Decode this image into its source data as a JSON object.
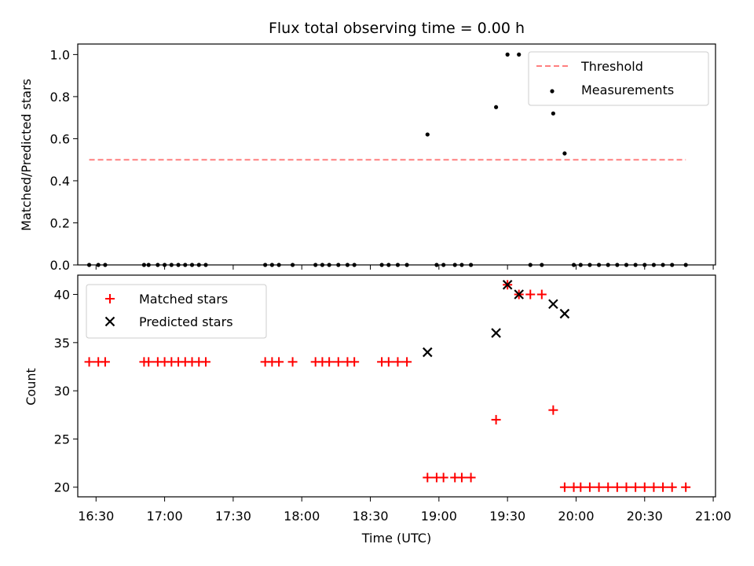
{
  "chart_data": {
    "title": "Flux total observing time = 0.00 h",
    "colors": {
      "threshold": "#ff7f7f",
      "measurements": "#000000",
      "matched": "#ff0000",
      "predicted": "#000000"
    },
    "x_axis": {
      "label": "Time (UTC)",
      "range": [
        "16:22",
        "21:01"
      ],
      "ticks": [
        "16:30",
        "17:00",
        "17:30",
        "18:00",
        "18:30",
        "19:00",
        "19:30",
        "20:00",
        "20:30",
        "21:00"
      ]
    },
    "panels": [
      {
        "type": "scatter",
        "ylabel": "Matched/Predicted stars",
        "ylim": [
          0,
          1.05
        ],
        "yticks": [
          "0.0",
          "0.2",
          "0.4",
          "0.6",
          "0.8",
          "1.0"
        ],
        "legend_position": "top-right",
        "threshold": {
          "name": "Threshold",
          "value": 0.5,
          "x_start": "16:27",
          "x_end": "20:48"
        },
        "series": [
          {
            "name": "Measurements",
            "points": [
              [
                "16:27",
                0
              ],
              [
                "16:31",
                0
              ],
              [
                "16:34",
                0
              ],
              [
                "16:51",
                0
              ],
              [
                "16:53",
                0
              ],
              [
                "16:57",
                0
              ],
              [
                "17:00",
                0
              ],
              [
                "17:03",
                0
              ],
              [
                "17:06",
                0
              ],
              [
                "17:09",
                0
              ],
              [
                "17:12",
                0
              ],
              [
                "17:15",
                0
              ],
              [
                "17:18",
                0
              ],
              [
                "17:44",
                0
              ],
              [
                "17:47",
                0
              ],
              [
                "17:50",
                0
              ],
              [
                "17:56",
                0
              ],
              [
                "18:06",
                0
              ],
              [
                "18:09",
                0
              ],
              [
                "18:12",
                0
              ],
              [
                "18:16",
                0
              ],
              [
                "18:20",
                0
              ],
              [
                "18:23",
                0
              ],
              [
                "18:35",
                0
              ],
              [
                "18:38",
                0
              ],
              [
                "18:42",
                0
              ],
              [
                "18:46",
                0
              ],
              [
                "18:55",
                0.62
              ],
              [
                "18:59",
                0
              ],
              [
                "19:02",
                0
              ],
              [
                "19:07",
                0
              ],
              [
                "19:10",
                0
              ],
              [
                "19:14",
                0
              ],
              [
                "19:25",
                0.75
              ],
              [
                "19:30",
                1.0
              ],
              [
                "19:35",
                1.0
              ],
              [
                "19:40",
                0
              ],
              [
                "19:45",
                0
              ],
              [
                "19:50",
                0.72
              ],
              [
                "19:55",
                0.53
              ],
              [
                "19:59",
                0
              ],
              [
                "20:02",
                0
              ],
              [
                "20:06",
                0
              ],
              [
                "20:10",
                0
              ],
              [
                "20:14",
                0
              ],
              [
                "20:18",
                0
              ],
              [
                "20:22",
                0
              ],
              [
                "20:26",
                0
              ],
              [
                "20:30",
                0
              ],
              [
                "20:34",
                0
              ],
              [
                "20:38",
                0
              ],
              [
                "20:42",
                0
              ],
              [
                "20:48",
                0
              ]
            ]
          }
        ]
      },
      {
        "type": "scatter",
        "ylabel": "Count",
        "ylim": [
          19,
          42
        ],
        "yticks": [
          "20",
          "25",
          "30",
          "35",
          "40"
        ],
        "legend_position": "top-left",
        "series": [
          {
            "name": "Matched stars",
            "marker": "plus",
            "points": [
              [
                "16:27",
                33
              ],
              [
                "16:31",
                33
              ],
              [
                "16:34",
                33
              ],
              [
                "16:51",
                33
              ],
              [
                "16:53",
                33
              ],
              [
                "16:57",
                33
              ],
              [
                "17:00",
                33
              ],
              [
                "17:03",
                33
              ],
              [
                "17:06",
                33
              ],
              [
                "17:09",
                33
              ],
              [
                "17:12",
                33
              ],
              [
                "17:15",
                33
              ],
              [
                "17:18",
                33
              ],
              [
                "17:44",
                33
              ],
              [
                "17:47",
                33
              ],
              [
                "17:50",
                33
              ],
              [
                "17:56",
                33
              ],
              [
                "18:06",
                33
              ],
              [
                "18:09",
                33
              ],
              [
                "18:12",
                33
              ],
              [
                "18:16",
                33
              ],
              [
                "18:20",
                33
              ],
              [
                "18:23",
                33
              ],
              [
                "18:35",
                33
              ],
              [
                "18:38",
                33
              ],
              [
                "18:42",
                33
              ],
              [
                "18:46",
                33
              ],
              [
                "18:55",
                21
              ],
              [
                "18:59",
                21
              ],
              [
                "19:02",
                21
              ],
              [
                "19:07",
                21
              ],
              [
                "19:10",
                21
              ],
              [
                "19:14",
                21
              ],
              [
                "19:25",
                27
              ],
              [
                "19:30",
                41
              ],
              [
                "19:35",
                40
              ],
              [
                "19:40",
                40
              ],
              [
                "19:45",
                40
              ],
              [
                "19:50",
                28
              ],
              [
                "19:55",
                20
              ],
              [
                "19:59",
                20
              ],
              [
                "20:02",
                20
              ],
              [
                "20:06",
                20
              ],
              [
                "20:10",
                20
              ],
              [
                "20:14",
                20
              ],
              [
                "20:18",
                20
              ],
              [
                "20:22",
                20
              ],
              [
                "20:26",
                20
              ],
              [
                "20:30",
                20
              ],
              [
                "20:34",
                20
              ],
              [
                "20:38",
                20
              ],
              [
                "20:42",
                20
              ],
              [
                "20:48",
                20
              ]
            ]
          },
          {
            "name": "Predicted stars",
            "marker": "x",
            "points": [
              [
                "18:55",
                34
              ],
              [
                "19:25",
                36
              ],
              [
                "19:30",
                41
              ],
              [
                "19:35",
                40
              ],
              [
                "19:50",
                39
              ],
              [
                "19:55",
                38
              ]
            ]
          }
        ]
      }
    ]
  }
}
